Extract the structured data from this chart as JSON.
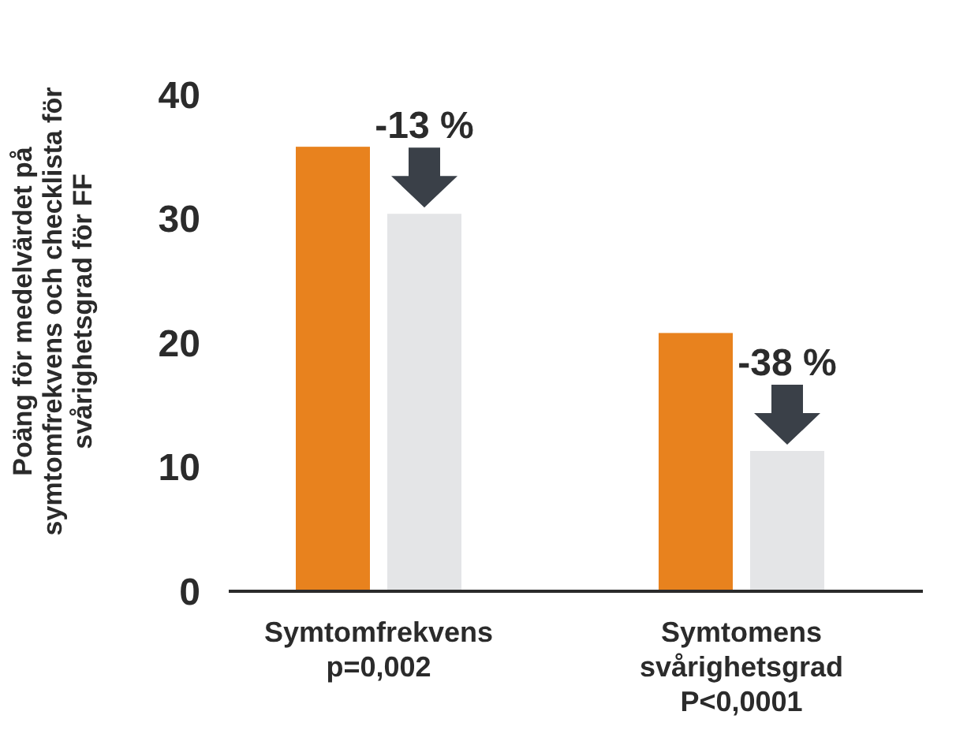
{
  "chart_data": {
    "type": "bar",
    "ylabel": "Poäng för medelvärdet på\nsymtomfrekvens och checklista för\nsvårighetsgrad för FF",
    "categories": [
      "Symtomfrekvens\np=0,002",
      "Symtomens\nsvårighetsgrad\nP<0,0001"
    ],
    "series": [
      {
        "color": "#e8821e",
        "values": [
          35.8,
          20.8
        ]
      },
      {
        "color": "#e4e5e7",
        "values": [
          30.4,
          11.3
        ]
      }
    ],
    "ylim": [
      0,
      40
    ],
    "yticks": [
      0,
      10,
      20,
      30,
      40
    ],
    "grid": false,
    "annotations": [
      "-13 %",
      "-38 %"
    ]
  }
}
